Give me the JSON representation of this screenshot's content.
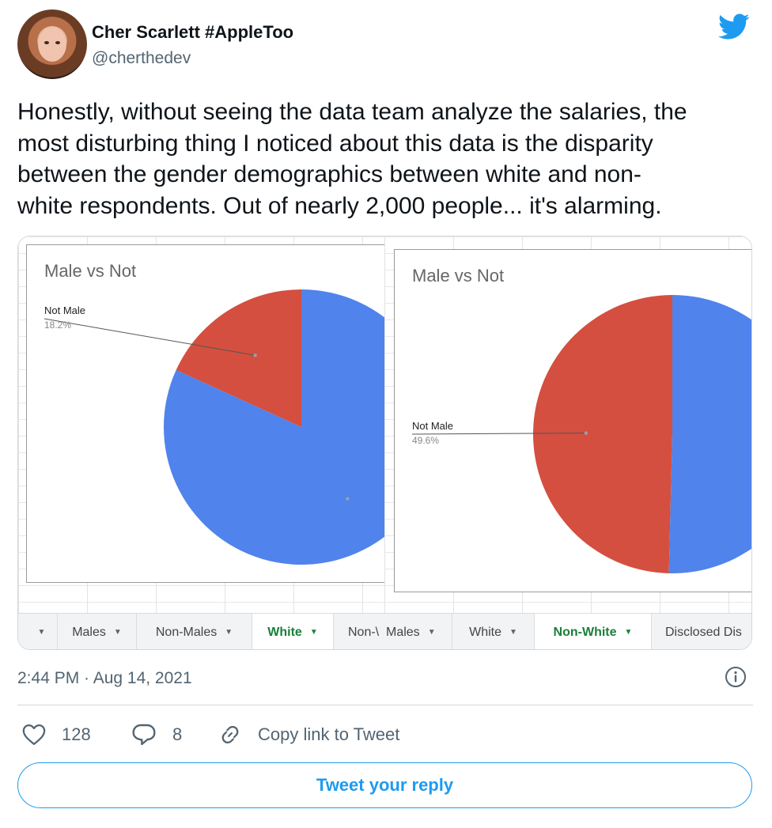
{
  "author": {
    "name": "Cher Scarlett #AppleToo",
    "handle": "@cherthedev"
  },
  "tweet": {
    "lines": [
      "Honestly, without seeing the data team analyze the salaries, the",
      "most disturbing thing I noticed about this data is  the disparity",
      "between the gender demographics between white and non-",
      "white respondents. Out of nearly 2,000 people... it's alarming."
    ]
  },
  "media": {
    "left_tabs": [
      {
        "label": "",
        "caret": "▼",
        "active": false
      },
      {
        "label": "Males",
        "caret": "▼",
        "active": false
      },
      {
        "label": "Non-Males",
        "caret": "▼",
        "active": false
      },
      {
        "label": "White",
        "caret": "▼",
        "active": true
      },
      {
        "label": "Non-\\",
        "caret": "",
        "active": false
      }
    ],
    "right_tabs": [
      {
        "label": "Males",
        "caret": "▼",
        "active": false
      },
      {
        "label": "White",
        "caret": "▼",
        "active": false
      },
      {
        "label": "Non-White",
        "caret": "▼",
        "active": true
      },
      {
        "label": "Disclosed Dis",
        "caret": "",
        "active": false
      }
    ]
  },
  "chart_data": [
    {
      "type": "pie",
      "title": "Male vs Not",
      "slices": [
        {
          "label": "Not Male",
          "value": 18.2,
          "display": "18.2%",
          "color": "#d44f3f",
          "labeled": true
        },
        {
          "label": "",
          "value": 81.8,
          "display": "",
          "color": "#5083eb",
          "labeled": false
        }
      ]
    },
    {
      "type": "pie",
      "title": "Male vs Not",
      "slices": [
        {
          "label": "Not Male",
          "value": 49.6,
          "display": "49.6%",
          "color": "#d44f3f",
          "labeled": true
        },
        {
          "label": "",
          "value": 50.4,
          "display": "",
          "color": "#5083eb",
          "labeled": false
        }
      ]
    }
  ],
  "meta": {
    "timestamp": "2:44 PM · Aug 14, 2021"
  },
  "actions": {
    "likes": "128",
    "replies": "8",
    "copy_link": "Copy link to Tweet"
  },
  "reply": {
    "label": "Tweet your reply"
  },
  "colors": {
    "accent": "#1d9bf0",
    "text_secondary": "#536471",
    "pie_red": "#d44f3f",
    "pie_blue": "#5083eb",
    "sheet_tab_active": "#188038"
  },
  "icons": {
    "brand": "twitter-bird-icon",
    "info": "info-icon",
    "like": "heart-icon",
    "reply": "speech-bubble-icon",
    "link": "link-icon"
  }
}
